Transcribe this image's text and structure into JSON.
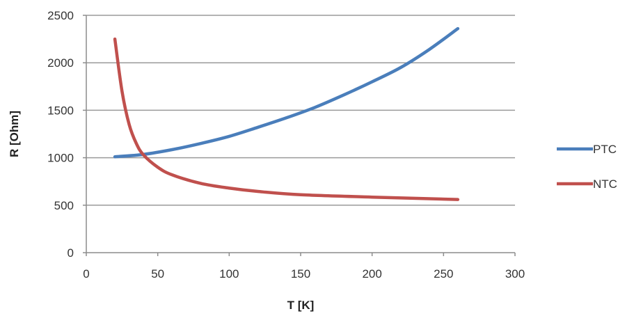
{
  "chart_data": {
    "type": "line",
    "title": "",
    "xlabel": "T [K]",
    "ylabel": "R [Ohm]",
    "xlim": [
      0,
      300
    ],
    "ylim": [
      0,
      2500
    ],
    "xticks": [
      0,
      50,
      100,
      150,
      200,
      250,
      300
    ],
    "yticks": [
      0,
      500,
      1000,
      1500,
      2000,
      2500
    ],
    "x_tick_labels": [
      "0",
      "50",
      "100",
      "150",
      "200",
      "250",
      "300"
    ],
    "y_tick_labels": [
      "0",
      "500",
      "1000",
      "1500",
      "2000",
      "2500"
    ],
    "grid": "horizontal",
    "legend_position": "right",
    "series": [
      {
        "name": "PTC",
        "color": "#4a7ebb",
        "x": [
          20,
          40,
          60,
          80,
          100,
          120,
          140,
          160,
          180,
          200,
          220,
          240,
          260
        ],
        "y": [
          1010,
          1035,
          1085,
          1150,
          1225,
          1320,
          1420,
          1530,
          1660,
          1800,
          1950,
          2140,
          2360
        ]
      },
      {
        "name": "NTC",
        "color": "#c0504d",
        "x": [
          20,
          25,
          30,
          35,
          40,
          50,
          60,
          80,
          100,
          120,
          150,
          200,
          260
        ],
        "y": [
          2250,
          1700,
          1350,
          1150,
          1030,
          900,
          820,
          730,
          680,
          645,
          610,
          585,
          560
        ]
      }
    ]
  }
}
